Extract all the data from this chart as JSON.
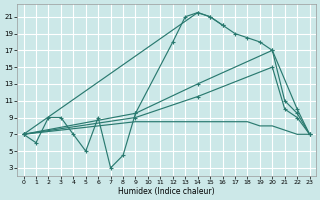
{
  "xlabel": "Humidex (Indice chaleur)",
  "bg_color": "#cce8e8",
  "grid_color": "#ffffff",
  "line_color": "#2a7a70",
  "xlim": [
    -0.5,
    23.5
  ],
  "ylim": [
    2,
    22.5
  ],
  "xticks": [
    0,
    1,
    2,
    3,
    4,
    5,
    6,
    7,
    8,
    9,
    10,
    11,
    12,
    13,
    14,
    15,
    16,
    17,
    18,
    19,
    20,
    21,
    22,
    23
  ],
  "yticks": [
    3,
    5,
    7,
    9,
    11,
    13,
    15,
    17,
    19,
    21
  ],
  "c1x": [
    0,
    1,
    2,
    3,
    4,
    5,
    6,
    7,
    8,
    9,
    12,
    13,
    14,
    15,
    16
  ],
  "c1y": [
    7,
    6,
    9,
    9,
    7,
    5,
    9,
    3,
    4.5,
    9.5,
    18,
    21,
    21.5,
    21,
    20
  ],
  "c2x": [
    0,
    14,
    15,
    16,
    17,
    18,
    19,
    20,
    22,
    23
  ],
  "c2y": [
    7,
    21.5,
    21,
    20,
    19,
    18.5,
    18,
    17,
    10,
    7
  ],
  "c3x": [
    0,
    9,
    14,
    20,
    21,
    22,
    23
  ],
  "c3y": [
    7,
    9.5,
    13,
    17,
    11,
    9.5,
    7
  ],
  "c4x": [
    0,
    9,
    14,
    20,
    21,
    22,
    23
  ],
  "c4y": [
    7,
    9,
    11.5,
    15,
    10,
    9,
    7
  ],
  "c5x": [
    0,
    9,
    10,
    11,
    12,
    13,
    14,
    15,
    16,
    17,
    18,
    19,
    20,
    21,
    22,
    23
  ],
  "c5y": [
    7,
    8.5,
    8.5,
    8.5,
    8.5,
    8.5,
    8.5,
    8.5,
    8.5,
    8.5,
    8.5,
    8,
    8,
    7.5,
    7,
    7
  ]
}
